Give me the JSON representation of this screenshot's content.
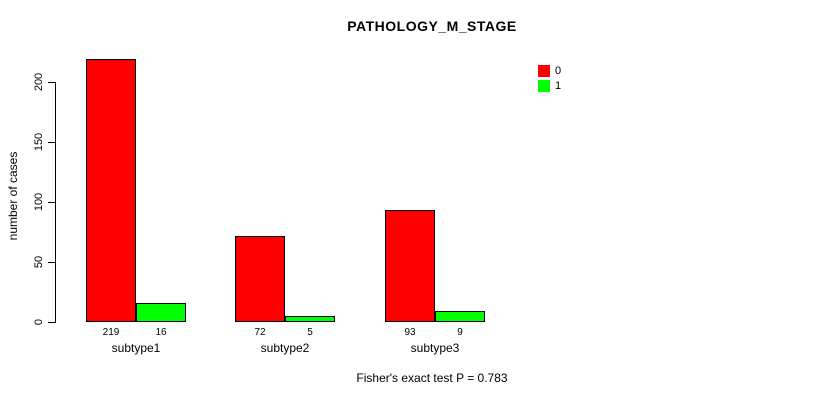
{
  "chart_data": {
    "type": "bar",
    "title": "PATHOLOGY_M_STAGE",
    "ylabel": "number of cases",
    "xlabel": "",
    "categories": [
      "subtype1",
      "subtype2",
      "subtype3"
    ],
    "series": [
      {
        "name": "0",
        "color": "#ff0000",
        "values": [
          219,
          72,
          93
        ]
      },
      {
        "name": "1",
        "color": "#00ff00",
        "values": [
          16,
          5,
          9
        ]
      }
    ],
    "bar_value_labels": [
      [
        219,
        16
      ],
      [
        72,
        5
      ],
      [
        93,
        9
      ]
    ],
    "yticks": [
      0,
      50,
      100,
      150,
      200
    ],
    "ylim": [
      0,
      225
    ],
    "grid": false,
    "legend_position": "top-right",
    "legend_entries": [
      {
        "label": "0",
        "color": "#ff0000"
      },
      {
        "label": "1",
        "color": "#00ff00"
      }
    ],
    "annotation": "Fisher's exact test P = 0.783"
  },
  "colors": {
    "bar_outline": "#000000",
    "axis": "#000000",
    "text": "#000000",
    "background": "#ffffff",
    "series0": "#ff0000",
    "series1": "#00ff00"
  }
}
